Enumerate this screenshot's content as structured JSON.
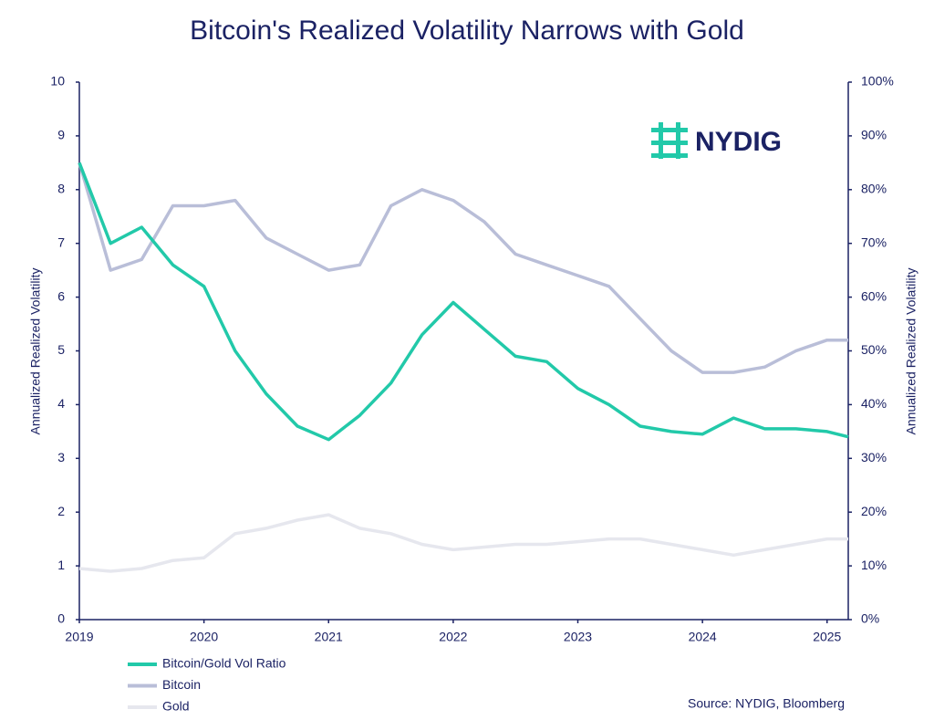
{
  "chart_data": {
    "type": "line",
    "title": "Bitcoin's Realized Volatility Narrows with Gold",
    "y_label": "Annualized Realized Volatility",
    "y2_label": "Annualized Realized Volatility",
    "source": "Source: NYDIG, Bloomberg",
    "logo": "NYDIG",
    "x": [
      2019,
      2019.25,
      2019.5,
      2019.75,
      2020,
      2020.25,
      2020.5,
      2020.75,
      2021,
      2021.25,
      2021.5,
      2021.75,
      2022,
      2022.25,
      2022.5,
      2022.75,
      2023,
      2023.25,
      2023.5,
      2023.75,
      2024,
      2024.25,
      2024.5,
      2024.75,
      2025,
      2025.17
    ],
    "xlim": [
      2019,
      2025.17
    ],
    "xticks": [
      2019,
      2020,
      2021,
      2022,
      2023,
      2024,
      2025
    ],
    "ylim": [
      0,
      10
    ],
    "yticks": [
      0,
      1,
      2,
      3,
      4,
      5,
      6,
      7,
      8,
      9,
      10
    ],
    "y2lim": [
      0,
      100
    ],
    "y2ticks": [
      {
        "value": 0,
        "label": "0%"
      },
      {
        "value": 10,
        "label": "10%"
      },
      {
        "value": 20,
        "label": "20%"
      },
      {
        "value": 30,
        "label": "30%"
      },
      {
        "value": 40,
        "label": "40%"
      },
      {
        "value": 50,
        "label": "50%"
      },
      {
        "value": 60,
        "label": "60%"
      },
      {
        "value": 70,
        "label": "70%"
      },
      {
        "value": 80,
        "label": "80%"
      },
      {
        "value": 90,
        "label": "90%"
      },
      {
        "value": 100,
        "label": "100%"
      }
    ],
    "series": [
      {
        "name": "Bitcoin/Gold Vol Ratio",
        "color": "#22c9a9",
        "axis": "y",
        "values": [
          8.5,
          7.0,
          7.3,
          6.6,
          6.2,
          5.0,
          4.2,
          3.6,
          3.35,
          3.8,
          4.4,
          5.3,
          5.9,
          5.4,
          4.9,
          4.8,
          4.3,
          4.0,
          3.6,
          3.5,
          3.45,
          3.75,
          3.55,
          3.55,
          3.5,
          3.4
        ]
      },
      {
        "name": "Bitcoin",
        "color": "#b9bed8",
        "axis": "y2",
        "values": [
          85,
          65,
          67,
          77,
          77,
          78,
          71,
          68,
          65,
          66,
          77,
          80,
          78,
          74,
          68,
          66,
          64,
          62,
          56,
          50,
          46,
          46,
          47,
          50,
          52,
          52
        ]
      },
      {
        "name": "Gold",
        "color": "#e6e7ee",
        "axis": "y2",
        "values": [
          9.5,
          9,
          9.5,
          11,
          11.5,
          16,
          17,
          18.5,
          19.5,
          17,
          16,
          14,
          13,
          13.5,
          14,
          14,
          14.5,
          15,
          15,
          14,
          13,
          12,
          13,
          14,
          15,
          15
        ]
      }
    ]
  }
}
